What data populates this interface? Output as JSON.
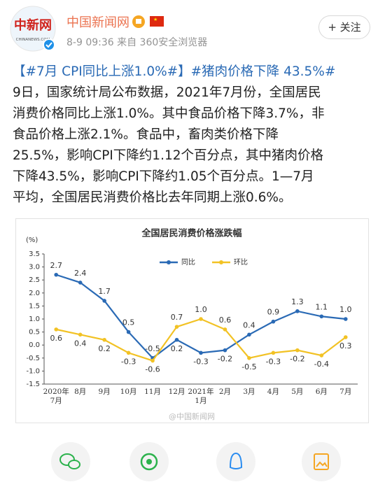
{
  "header": {
    "name": "中国新闻网",
    "meta": "8-9 09:36 来自 360安全浏览器",
    "avatar_text": "中新网",
    "avatar_small": "CHINANEWS.COM",
    "follow": "+ 关注"
  },
  "post": {
    "hashtags": "【#7月 CPI同比上涨1.0%#】#猪肉价格下降 43.5%#",
    "text_lines": [
      "9日，国家统计局公布数据，2021年7月份，全国居民",
      "消费价格同比上涨1.0%。其中食品价格下降3.7%，非",
      "食品价格上涨2.1%。食品中，畜肉类价格下降",
      "25.5%，影响CPI下降约1.12个百分点，其中猪肉价格",
      "下降43.5%，影响CPI下降约1.05个百分点。1—7月",
      "平均，全国居民消费价格比去年同期上涨0.6%。"
    ]
  },
  "chart_data": {
    "type": "line",
    "title": "全国居民消费价格涨跌幅",
    "y_unit": "(%)",
    "categories": [
      "2020年\n7月",
      "8月",
      "9月",
      "10月",
      "11月",
      "12月",
      "2021年\n1月",
      "2月",
      "3月",
      "4月",
      "5月",
      "6月",
      "7月"
    ],
    "series": [
      {
        "name": "同比",
        "color": "#2a6ab5",
        "values": [
          2.7,
          2.4,
          1.7,
          0.5,
          -0.5,
          0.2,
          -0.3,
          -0.2,
          0.4,
          0.9,
          1.3,
          1.1,
          1.0
        ],
        "value_labels": [
          "2.7",
          "2.4",
          "1.7",
          "0.5",
          "-0.5",
          "0.2",
          "-0.3",
          "-0.2",
          "0.4",
          "0.9",
          "1.3",
          "1.1",
          "1.0"
        ]
      },
      {
        "name": "环比",
        "color": "#f2c224",
        "values": [
          0.6,
          0.4,
          0.2,
          -0.3,
          -0.6,
          0.7,
          1.0,
          0.6,
          -0.5,
          -0.3,
          -0.2,
          -0.4,
          0.3
        ],
        "value_labels": [
          "0.6",
          "0.4",
          "0.2",
          "-0.3",
          "-0.6",
          "0.7",
          "1.0",
          "0.6",
          "-0.5",
          "-0.3",
          "-0.2",
          "-0.4",
          "0.3"
        ]
      }
    ],
    "ylim": [
      -1.5,
      3.5
    ],
    "yticks": [
      -1.5,
      {
        "value": -1,
        "label": "-1.0"
      },
      -0.5,
      {
        "value": 0,
        "label": "0.0"
      },
      0.5,
      {
        "value": 1,
        "label": "1.0"
      },
      1.5,
      {
        "value": 2,
        "label": "2.0"
      },
      2.5,
      {
        "value": 3,
        "label": "3.0"
      },
      3.5
    ],
    "grid": false,
    "legend": "top"
  },
  "watermark": "@中国新闻网"
}
